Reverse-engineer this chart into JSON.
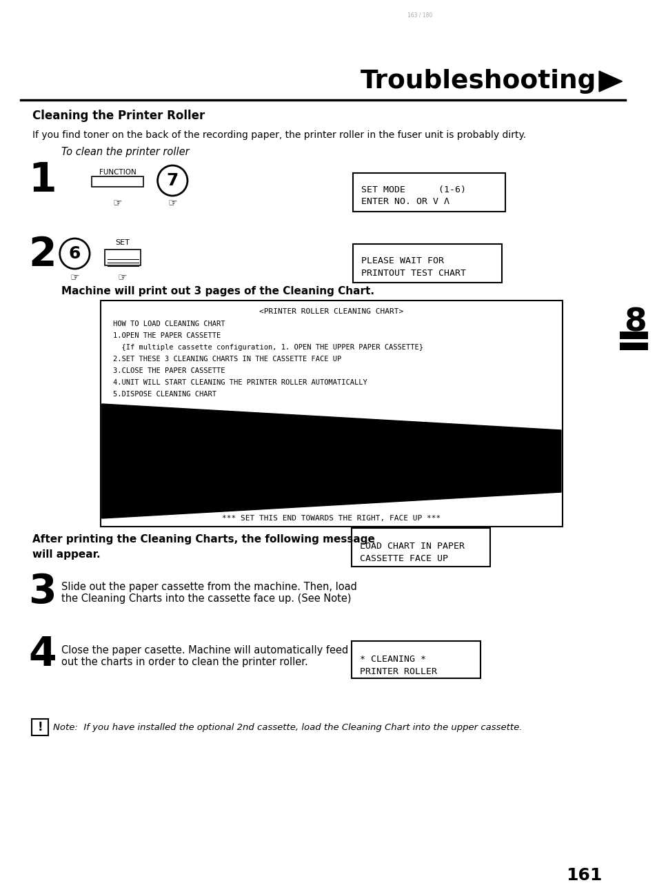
{
  "title": "Troubleshooting",
  "section_title": "Cleaning the Printer Roller",
  "intro_text1": "If you find toner on the back of the recording paper, the printer roller in the fuser unit is probably dirty.",
  "intro_text2": "To clean the printer roller",
  "step1_label": "1",
  "step1_button1": "FUNCTION",
  "step1_button2": "7",
  "step1_display": [
    "SET MODE      (1-6)",
    "ENTER NO. OR V Λ"
  ],
  "step2_label": "2",
  "step2_button1": "6",
  "step2_button2": "SET",
  "step2_display": [
    "PLEASE WAIT FOR",
    "PRINTOUT TEST CHART"
  ],
  "step2_text": "Machine will print out 3 pages of the Cleaning Chart.",
  "chart_title": "<PRINTER ROLLER CLEANING CHART>",
  "chart_lines": [
    "HOW TO LOAD CLEANING CHART",
    "1.OPEN THE PAPER CASSETTE",
    "  {If multiple cassette configuration, 1. OPEN THE UPPER PAPER CASSETTE}",
    "2.SET THESE 3 CLEANING CHARTS IN THE CASSETTE FACE UP",
    "3.CLOSE THE PAPER CASSETTE",
    "4.UNIT WILL START CLEANING THE PRINTER ROLLER AUTOMATICALLY",
    "5.DISPOSE CLEANING CHART"
  ],
  "chart_bottom_text": "*** SET THIS END TOWARDS THE RIGHT, FACE UP ***",
  "after_text1": "After printing the Cleaning Charts, the following message",
  "after_text2": "will appear.",
  "after_display": [
    "LOAD CHART IN PAPER",
    "CASSETTE FACE UP"
  ],
  "step3_label": "3",
  "step3_text": "Slide out the paper cassette from the machine. Then, load\nthe Cleaning Charts into the cassette face up. (See Note)",
  "step4_label": "4",
  "step4_text": "Close the paper casette. Machine will automatically feed\nout the charts in order to clean the printer roller.",
  "step4_display": [
    "* CLEANING *",
    "PRINTER ROLLER"
  ],
  "note_text": "Note:  If you have installed the optional 2nd cassette, load the Cleaning Chart into the upper cassette.",
  "page_number": "161",
  "chapter_number": "8",
  "bg_color": "#ffffff",
  "text_color": "#000000"
}
